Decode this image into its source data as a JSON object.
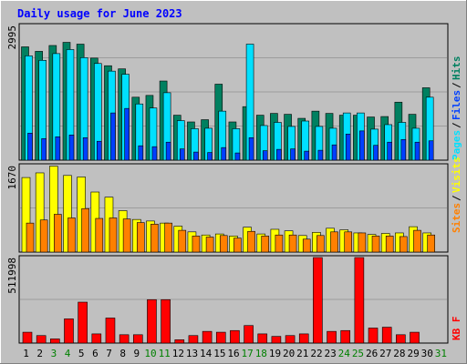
{
  "title": "Daily usage for June 2023",
  "colors": {
    "background": "#c0c0c0",
    "title": "#0000ff",
    "hits": "#008060",
    "files": "#00e0ff",
    "pages": "#0040ff",
    "visits": "#ffff00",
    "sites": "#ff8000",
    "kbytes": "#ff0000",
    "weekend_label": "#008000"
  },
  "chart_data": [
    {
      "type": "bar",
      "panel": "hits-files-pages",
      "title": "Daily usage for June 2023",
      "categories": [
        "1",
        "2",
        "3",
        "4",
        "5",
        "6",
        "7",
        "8",
        "9",
        "10",
        "11",
        "12",
        "13",
        "14",
        "15",
        "16",
        "17",
        "18",
        "19",
        "20",
        "21",
        "22",
        "23",
        "24",
        "25",
        "26",
        "27",
        "28",
        "29",
        "30",
        "31"
      ],
      "ylim": [
        0,
        2995
      ],
      "ymax_label": "2995",
      "series": [
        {
          "name": "Hits",
          "values": [
            2520,
            2420,
            2550,
            2620,
            2580,
            2270,
            2100,
            2030,
            1400,
            1440,
            1760,
            1000,
            850,
            900,
            1690,
            850,
            1190,
            1000,
            1040,
            1020,
            930,
            1090,
            1040,
            1000,
            1000,
            960,
            970,
            1290,
            1020,
            1610,
            0
          ]
        },
        {
          "name": "Files",
          "values": [
            2320,
            2220,
            2370,
            2460,
            2280,
            2150,
            1980,
            1910,
            1250,
            1160,
            1500,
            880,
            700,
            710,
            1090,
            700,
            2580,
            770,
            840,
            750,
            870,
            750,
            710,
            1050,
            1050,
            690,
            790,
            840,
            710,
            1400,
            0
          ]
        },
        {
          "name": "Pages",
          "values": [
            600,
            480,
            520,
            560,
            500,
            420,
            1050,
            1150,
            320,
            300,
            400,
            250,
            180,
            170,
            280,
            160,
            500,
            210,
            240,
            250,
            200,
            220,
            340,
            580,
            650,
            330,
            400,
            460,
            400,
            430,
            0
          ]
        }
      ],
      "legend": [
        "Pages",
        "Files",
        "Hits"
      ]
    },
    {
      "type": "bar",
      "panel": "visits-sites",
      "categories": [
        "1",
        "2",
        "3",
        "4",
        "5",
        "6",
        "7",
        "8",
        "9",
        "10",
        "11",
        "12",
        "13",
        "14",
        "15",
        "16",
        "17",
        "18",
        "19",
        "20",
        "21",
        "22",
        "23",
        "24",
        "25",
        "26",
        "27",
        "28",
        "29",
        "30",
        "31"
      ],
      "ylim": [
        0,
        1670
      ],
      "ymax_label": "1670",
      "series": [
        {
          "name": "Visits",
          "values": [
            1440,
            1530,
            1660,
            1480,
            1450,
            1160,
            1060,
            800,
            630,
            600,
            560,
            500,
            390,
            330,
            350,
            310,
            480,
            350,
            440,
            410,
            320,
            380,
            460,
            430,
            370,
            340,
            360,
            370,
            490,
            370,
            0
          ]
        },
        {
          "name": "Sites",
          "values": [
            560,
            620,
            730,
            660,
            840,
            650,
            660,
            640,
            570,
            540,
            560,
            420,
            310,
            290,
            320,
            270,
            400,
            310,
            330,
            330,
            250,
            320,
            390,
            390,
            370,
            310,
            310,
            300,
            420,
            330,
            0
          ]
        }
      ],
      "legend": [
        "Sites",
        "Visits"
      ]
    },
    {
      "type": "bar",
      "panel": "kbytes",
      "categories": [
        "1",
        "2",
        "3",
        "4",
        "5",
        "6",
        "7",
        "8",
        "9",
        "10",
        "11",
        "12",
        "13",
        "14",
        "15",
        "16",
        "17",
        "18",
        "19",
        "20",
        "21",
        "22",
        "23",
        "24",
        "25",
        "26",
        "27",
        "28",
        "29",
        "30",
        "31"
      ],
      "ylim": [
        0,
        511998
      ],
      "ymax_label": "511998",
      "series": [
        {
          "name": "KB F",
          "values": [
            65000,
            45000,
            25000,
            145000,
            245000,
            55000,
            150000,
            50000,
            50000,
            260000,
            260000,
            20000,
            45000,
            70000,
            65000,
            75000,
            105000,
            55000,
            40000,
            45000,
            55000,
            511998,
            70000,
            75000,
            511998,
            90000,
            95000,
            50000,
            65000,
            0,
            0
          ]
        }
      ],
      "legend": [
        "KB F"
      ]
    }
  ],
  "x_labels": {
    "weekend_days": [
      "3",
      "4",
      "10",
      "11",
      "17",
      "18",
      "24",
      "25",
      "31"
    ]
  },
  "legend_separator": "/"
}
